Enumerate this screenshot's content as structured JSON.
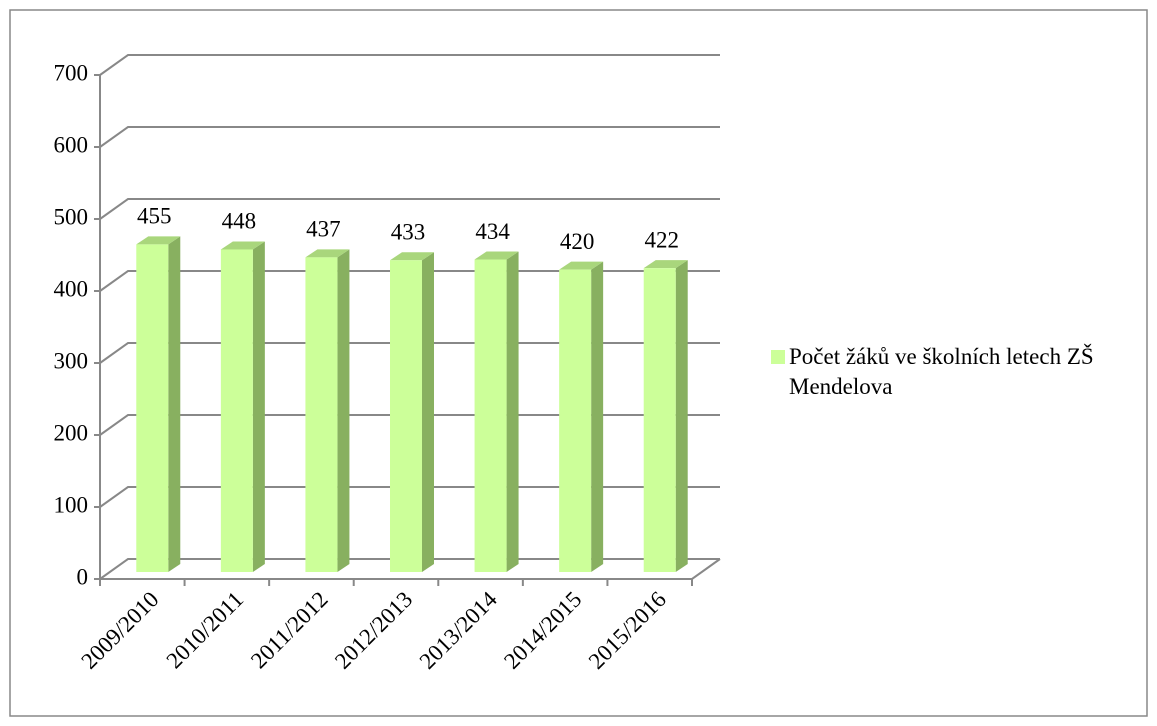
{
  "chart_data": {
    "type": "bar3d",
    "categories": [
      "2009/2010",
      "2010/2011",
      "2011/2012",
      "2012/2013",
      "2013/2014",
      "2014/2015",
      "2015/2016"
    ],
    "series": [
      {
        "name": "Počet žáků ve školních letech ZŠ Mendelova",
        "color": "#ccff99",
        "values": [
          455,
          448,
          437,
          433,
          434,
          420,
          422
        ]
      }
    ],
    "ylim": [
      0,
      700
    ],
    "yticks": [
      0,
      100,
      200,
      300,
      400,
      500,
      600,
      700
    ],
    "grid": true,
    "legend": "right"
  }
}
